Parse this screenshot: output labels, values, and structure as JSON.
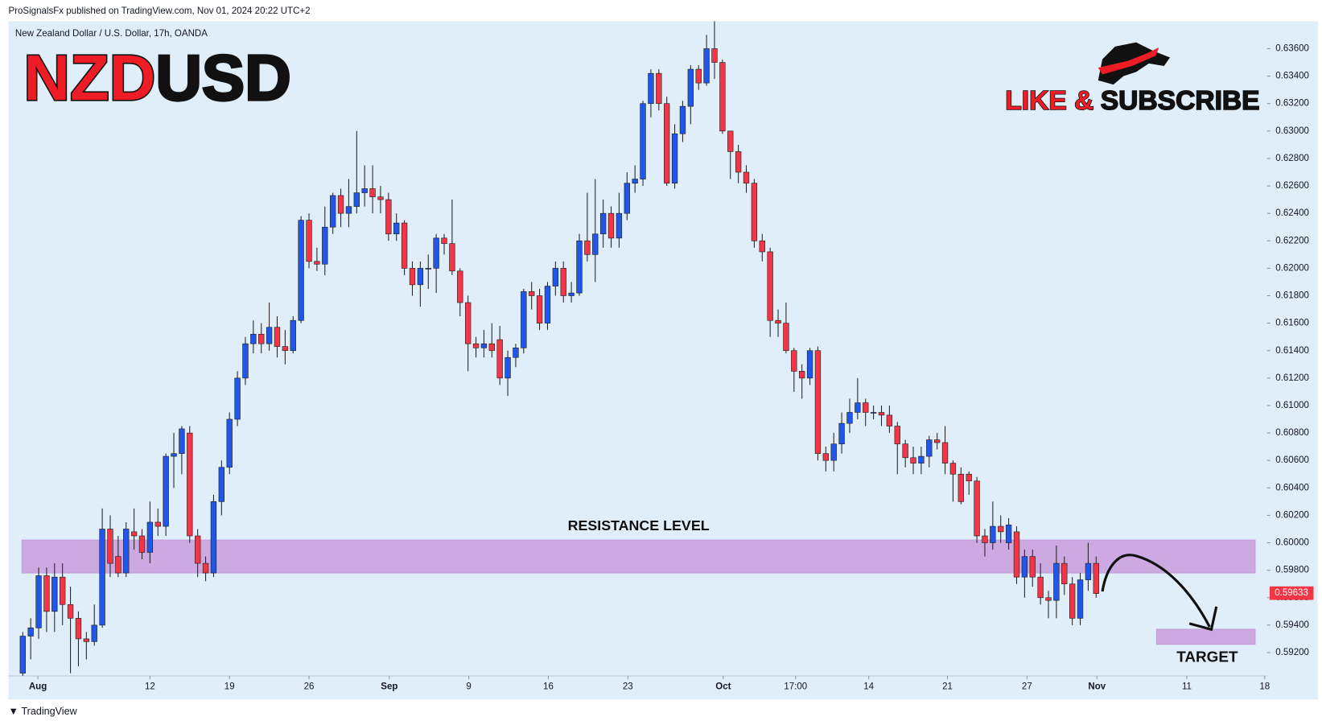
{
  "header": {
    "publisher": "ProSignalsFx published on TradingView.com, Nov 01, 2024 20:22 UTC+2",
    "footer": "TradingView"
  },
  "chart_data": {
    "type": "candlestick",
    "symbol": "New Zealand Dollar / U.S. Dollar, 17h, OANDA",
    "title_parts": [
      "NZD",
      "USD"
    ],
    "banner_parts": [
      "LIKE &",
      "SUBSCRIBE"
    ],
    "up_color": "#2157e8",
    "down_color": "#f23645",
    "ylim": [
      0.5903,
      0.638
    ],
    "yticks": [
      {
        "value": 0.592,
        "label": "0.59200"
      },
      {
        "value": 0.594,
        "label": "0.59400"
      },
      {
        "value": 0.596,
        "label": "0.59600"
      },
      {
        "value": 0.598,
        "label": "0.59800"
      },
      {
        "value": 0.6,
        "label": "0.60000"
      },
      {
        "value": 0.602,
        "label": "0.60200"
      },
      {
        "value": 0.604,
        "label": "0.60400"
      },
      {
        "value": 0.606,
        "label": "0.60600"
      },
      {
        "value": 0.608,
        "label": "0.60800"
      },
      {
        "value": 0.61,
        "label": "0.61000"
      },
      {
        "value": 0.612,
        "label": "0.61200"
      },
      {
        "value": 0.614,
        "label": "0.61400"
      },
      {
        "value": 0.616,
        "label": "0.61600"
      },
      {
        "value": 0.618,
        "label": "0.61800"
      },
      {
        "value": 0.62,
        "label": "0.62000"
      },
      {
        "value": 0.622,
        "label": "0.62200"
      },
      {
        "value": 0.624,
        "label": "0.62400"
      },
      {
        "value": 0.626,
        "label": "0.62600"
      },
      {
        "value": 0.628,
        "label": "0.62800"
      },
      {
        "value": 0.63,
        "label": "0.63000"
      },
      {
        "value": 0.632,
        "label": "0.63200"
      },
      {
        "value": 0.634,
        "label": "0.63400"
      },
      {
        "value": 0.636,
        "label": "0.63600"
      }
    ],
    "xlim": [
      -1.8,
      156.5
    ],
    "xticks": [
      {
        "value": 1.9,
        "label": "Aug"
      },
      {
        "value": 16,
        "label": "12"
      },
      {
        "value": 26,
        "label": "19"
      },
      {
        "value": 36,
        "label": "26"
      },
      {
        "value": 46.1,
        "label": "Sep"
      },
      {
        "value": 56.1,
        "label": "9"
      },
      {
        "value": 66.1,
        "label": "16"
      },
      {
        "value": 76.1,
        "label": "23"
      },
      {
        "value": 88.1,
        "label": "Oct"
      },
      {
        "value": 97.2,
        "label": "17:00"
      },
      {
        "value": 106.4,
        "label": "14"
      },
      {
        "value": 116.3,
        "label": "21"
      },
      {
        "value": 126.3,
        "label": "27"
      },
      {
        "value": 135.1,
        "label": "Nov"
      },
      {
        "value": 146.4,
        "label": "11"
      },
      {
        "value": 156.2,
        "label": "18"
      }
    ],
    "last_price": 0.59633,
    "zones": [
      {
        "label": "RESISTANCE LEVEL",
        "y": [
          0.5978,
          0.6002
        ],
        "x": [
          -0.1,
          155
        ]
      },
      {
        "label": "TARGET",
        "y": [
          0.5926,
          0.5937
        ],
        "x": [
          142.6,
          155
        ]
      }
    ],
    "candles": [
      [
        0.5905,
        0.5935,
        0.5903,
        0.5932
      ],
      [
        0.5932,
        0.5945,
        0.5915,
        0.5938
      ],
      [
        0.5938,
        0.5982,
        0.593,
        0.5976
      ],
      [
        0.5976,
        0.5982,
        0.5935,
        0.595
      ],
      [
        0.595,
        0.5985,
        0.5935,
        0.5975
      ],
      [
        0.5975,
        0.5985,
        0.594,
        0.5955
      ],
      [
        0.5955,
        0.5968,
        0.5905,
        0.5945
      ],
      [
        0.5945,
        0.595,
        0.591,
        0.593
      ],
      [
        0.593,
        0.5935,
        0.5915,
        0.5928
      ],
      [
        0.5928,
        0.5955,
        0.5925,
        0.594
      ],
      [
        0.594,
        0.6025,
        0.5938,
        0.601
      ],
      [
        0.601,
        0.602,
        0.5975,
        0.5985
      ],
      [
        0.599,
        0.6005,
        0.5975,
        0.5978
      ],
      [
        0.5978,
        0.6015,
        0.5975,
        0.601
      ],
      [
        0.6008,
        0.6025,
        0.5995,
        0.6005
      ],
      [
        0.6005,
        0.601,
        0.5988,
        0.5993
      ],
      [
        0.5993,
        0.603,
        0.5985,
        0.6015
      ],
      [
        0.6015,
        0.6025,
        0.6005,
        0.6012
      ],
      [
        0.6012,
        0.6065,
        0.6005,
        0.6063
      ],
      [
        0.6063,
        0.608,
        0.604,
        0.6065
      ],
      [
        0.6065,
        0.6085,
        0.605,
        0.6083
      ],
      [
        0.608,
        0.6085,
        0.6,
        0.6005
      ],
      [
        0.6005,
        0.601,
        0.5975,
        0.5985
      ],
      [
        0.5985,
        0.599,
        0.5972,
        0.5978
      ],
      [
        0.5978,
        0.6035,
        0.5975,
        0.603
      ],
      [
        0.603,
        0.606,
        0.602,
        0.6055
      ],
      [
        0.6055,
        0.6095,
        0.605,
        0.609
      ],
      [
        0.609,
        0.6125,
        0.6085,
        0.612
      ],
      [
        0.612,
        0.615,
        0.6115,
        0.6145
      ],
      [
        0.6145,
        0.6162,
        0.6138,
        0.6152
      ],
      [
        0.6152,
        0.616,
        0.6138,
        0.6145
      ],
      [
        0.6145,
        0.6175,
        0.614,
        0.6157
      ],
      [
        0.6157,
        0.6165,
        0.6135,
        0.6143
      ],
      [
        0.6143,
        0.6155,
        0.613,
        0.614
      ],
      [
        0.614,
        0.6165,
        0.6138,
        0.6162
      ],
      [
        0.6162,
        0.6238,
        0.616,
        0.6235
      ],
      [
        0.6235,
        0.624,
        0.62,
        0.6205
      ],
      [
        0.6205,
        0.6215,
        0.6198,
        0.6203
      ],
      [
        0.6203,
        0.6245,
        0.6195,
        0.623
      ],
      [
        0.623,
        0.6255,
        0.6225,
        0.6253
      ],
      [
        0.6253,
        0.6258,
        0.623,
        0.624
      ],
      [
        0.624,
        0.6265,
        0.623,
        0.6245
      ],
      [
        0.6245,
        0.63,
        0.624,
        0.6255
      ],
      [
        0.6255,
        0.6275,
        0.6245,
        0.6258
      ],
      [
        0.6258,
        0.6275,
        0.624,
        0.6252
      ],
      [
        0.6252,
        0.626,
        0.624,
        0.625
      ],
      [
        0.625,
        0.6255,
        0.622,
        0.6225
      ],
      [
        0.6225,
        0.624,
        0.622,
        0.6233
      ],
      [
        0.6233,
        0.6235,
        0.6195,
        0.62
      ],
      [
        0.62,
        0.6205,
        0.618,
        0.6188
      ],
      [
        0.6188,
        0.6205,
        0.6172,
        0.62
      ],
      [
        0.62,
        0.621,
        0.6185,
        0.62
      ],
      [
        0.62,
        0.6225,
        0.6182,
        0.6222
      ],
      [
        0.6222,
        0.6225,
        0.621,
        0.6218
      ],
      [
        0.6218,
        0.625,
        0.6195,
        0.6198
      ],
      [
        0.6198,
        0.62,
        0.6165,
        0.6175
      ],
      [
        0.6175,
        0.618,
        0.6125,
        0.6145
      ],
      [
        0.6145,
        0.615,
        0.6135,
        0.6142
      ],
      [
        0.6142,
        0.6155,
        0.6135,
        0.6145
      ],
      [
        0.6145,
        0.616,
        0.6135,
        0.614
      ],
      [
        0.6148,
        0.6158,
        0.6115,
        0.612
      ],
      [
        0.612,
        0.614,
        0.6107,
        0.6135
      ],
      [
        0.6135,
        0.6145,
        0.6128,
        0.6142
      ],
      [
        0.6142,
        0.6185,
        0.6138,
        0.6183
      ],
      [
        0.6183,
        0.619,
        0.617,
        0.618
      ],
      [
        0.618,
        0.6185,
        0.6155,
        0.616
      ],
      [
        0.616,
        0.619,
        0.6155,
        0.6187
      ],
      [
        0.6187,
        0.6205,
        0.618,
        0.62
      ],
      [
        0.62,
        0.6205,
        0.6175,
        0.618
      ],
      [
        0.618,
        0.619,
        0.6175,
        0.6182
      ],
      [
        0.6182,
        0.6225,
        0.618,
        0.622
      ],
      [
        0.622,
        0.6255,
        0.6205,
        0.621
      ],
      [
        0.621,
        0.6265,
        0.619,
        0.6225
      ],
      [
        0.6225,
        0.625,
        0.6215,
        0.624
      ],
      [
        0.624,
        0.6245,
        0.6215,
        0.6222
      ],
      [
        0.6222,
        0.6255,
        0.6215,
        0.624
      ],
      [
        0.624,
        0.627,
        0.6235,
        0.6262
      ],
      [
        0.6262,
        0.6275,
        0.6255,
        0.6265
      ],
      [
        0.6265,
        0.6322,
        0.626,
        0.632
      ],
      [
        0.632,
        0.6345,
        0.631,
        0.6342
      ],
      [
        0.6342,
        0.6345,
        0.6315,
        0.632
      ],
      [
        0.632,
        0.6325,
        0.626,
        0.6262
      ],
      [
        0.6262,
        0.6305,
        0.6258,
        0.6298
      ],
      [
        0.6298,
        0.6322,
        0.6292,
        0.6318
      ],
      [
        0.6318,
        0.6348,
        0.6305,
        0.6345
      ],
      [
        0.6345,
        0.6348,
        0.633,
        0.6335
      ],
      [
        0.6335,
        0.637,
        0.6333,
        0.636
      ],
      [
        0.636,
        0.638,
        0.6338,
        0.635
      ],
      [
        0.635,
        0.6352,
        0.6298,
        0.63
      ],
      [
        0.63,
        0.63,
        0.6265,
        0.6285
      ],
      [
        0.6285,
        0.629,
        0.6262,
        0.627
      ],
      [
        0.627,
        0.6275,
        0.6255,
        0.6262
      ],
      [
        0.6262,
        0.6265,
        0.6215,
        0.622
      ],
      [
        0.622,
        0.6225,
        0.6205,
        0.6212
      ],
      [
        0.6212,
        0.6215,
        0.615,
        0.6162
      ],
      [
        0.6162,
        0.617,
        0.615,
        0.616
      ],
      [
        0.616,
        0.6175,
        0.6138,
        0.614
      ],
      [
        0.614,
        0.6142,
        0.611,
        0.6125
      ],
      [
        0.6125,
        0.613,
        0.6105,
        0.612
      ],
      [
        0.612,
        0.6142,
        0.6115,
        0.614
      ],
      [
        0.614,
        0.6143,
        0.606,
        0.6065
      ],
      [
        0.6065,
        0.607,
        0.6052,
        0.606
      ],
      [
        0.606,
        0.608,
        0.6052,
        0.6072
      ],
      [
        0.6072,
        0.6095,
        0.6065,
        0.6087
      ],
      [
        0.6087,
        0.6105,
        0.608,
        0.6095
      ],
      [
        0.6095,
        0.612,
        0.609,
        0.6102
      ],
      [
        0.6102,
        0.6105,
        0.6085,
        0.6095
      ],
      [
        0.6095,
        0.61,
        0.609,
        0.6095
      ],
      [
        0.6095,
        0.61,
        0.6085,
        0.6093
      ],
      [
        0.6093,
        0.61,
        0.608,
        0.6085
      ],
      [
        0.6085,
        0.6088,
        0.605,
        0.6072
      ],
      [
        0.6072,
        0.6075,
        0.6055,
        0.6062
      ],
      [
        0.6062,
        0.607,
        0.605,
        0.6058
      ],
      [
        0.6058,
        0.607,
        0.605,
        0.6063
      ],
      [
        0.6063,
        0.6078,
        0.6055,
        0.6075
      ],
      [
        0.6075,
        0.608,
        0.6068,
        0.6073
      ],
      [
        0.6073,
        0.6085,
        0.605,
        0.6058
      ],
      [
        0.6058,
        0.606,
        0.603,
        0.605
      ],
      [
        0.605,
        0.6055,
        0.6028,
        0.603
      ],
      [
        0.605,
        0.6052,
        0.6035,
        0.6045
      ],
      [
        0.6045,
        0.6048,
        0.6,
        0.6005
      ],
      [
        0.6005,
        0.601,
        0.599,
        0.6
      ],
      [
        0.6,
        0.603,
        0.5995,
        0.6012
      ],
      [
        0.6012,
        0.602,
        0.6,
        0.6008
      ],
      [
        0.6,
        0.6018,
        0.5995,
        0.6013
      ],
      [
        0.6008,
        0.6012,
        0.597,
        0.5975
      ],
      [
        0.5975,
        0.5995,
        0.596,
        0.599
      ],
      [
        0.599,
        0.5995,
        0.5968,
        0.5975
      ],
      [
        0.5975,
        0.5985,
        0.5955,
        0.596
      ],
      [
        0.596,
        0.5965,
        0.5945,
        0.5958
      ],
      [
        0.5958,
        0.5998,
        0.5945,
        0.5985
      ],
      [
        0.5985,
        0.599,
        0.5962,
        0.597
      ],
      [
        0.597,
        0.5975,
        0.594,
        0.5945
      ],
      [
        0.5945,
        0.5978,
        0.594,
        0.5973
      ],
      [
        0.5973,
        0.6,
        0.5965,
        0.5985
      ],
      [
        0.5985,
        0.599,
        0.596,
        0.5963
      ]
    ]
  }
}
